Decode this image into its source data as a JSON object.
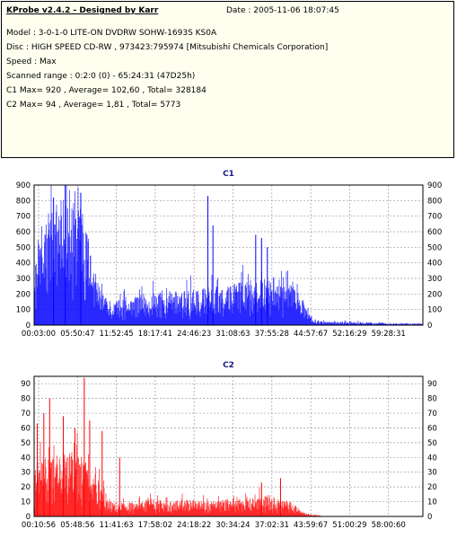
{
  "info": {
    "app_title": "KProbe v2.4.2 - Designed by Karr",
    "date": "Date : 2005-11-06 18:07:45",
    "lines": [
      "Model : 3-0-1-0 LITE-ON DVDRW SOHW-1693S KS0A",
      "Disc : HIGH SPEED CD-RW , 973423:795974 [Mitsubishi Chemicals Corporation]",
      "Speed : Max",
      "Scanned range : 0:2:0 (0) - 65:24:31 (47D25h)",
      "C1 Max= 920 , Average= 102,60 , Total= 328184",
      "C2 Max= 94 , Average= 1,81 , Total= 5773"
    ]
  },
  "chart_data": [
    {
      "type": "bar",
      "title": "C1",
      "color": "#0000ff",
      "ylim": [
        0,
        900
      ],
      "yticks": [
        0,
        100,
        200,
        300,
        400,
        500,
        600,
        700,
        800,
        900
      ],
      "xticks": [
        "00:03:00",
        "05:50:47",
        "11:52:45",
        "18:17:41",
        "24:46:23",
        "31:08:63",
        "37:55:28",
        "44:57:67",
        "52:16:29",
        "59:28:31"
      ],
      "grid": true,
      "envelope": [
        [
          0,
          420
        ],
        [
          2,
          680
        ],
        [
          4,
          740
        ],
        [
          6,
          820
        ],
        [
          8,
          860
        ],
        [
          10,
          900
        ],
        [
          12,
          880
        ],
        [
          14,
          600
        ],
        [
          15,
          500
        ],
        [
          16,
          300
        ],
        [
          18,
          180
        ],
        [
          20,
          160
        ],
        [
          24,
          170
        ],
        [
          28,
          200
        ],
        [
          32,
          210
        ],
        [
          36,
          230
        ],
        [
          40,
          230
        ],
        [
          44,
          240
        ],
        [
          48,
          260
        ],
        [
          52,
          270
        ],
        [
          56,
          300
        ],
        [
          60,
          300
        ],
        [
          64,
          310
        ],
        [
          66,
          300
        ],
        [
          68,
          250
        ],
        [
          70,
          100
        ],
        [
          72,
          40
        ],
        [
          75,
          20
        ],
        [
          80,
          25
        ],
        [
          85,
          20
        ],
        [
          90,
          15
        ],
        [
          95,
          12
        ],
        [
          100,
          10
        ]
      ],
      "spikes": [
        {
          "x": 5,
          "value": 820
        },
        {
          "x": 8,
          "value": 920
        },
        {
          "x": 12,
          "value": 850
        },
        {
          "x": 44.7,
          "value": 830
        },
        {
          "x": 46,
          "value": 640
        },
        {
          "x": 57,
          "value": 580
        },
        {
          "x": 58.5,
          "value": 560
        },
        {
          "x": 60,
          "value": 500
        }
      ]
    },
    {
      "type": "bar",
      "title": "C2",
      "color": "#ff0000",
      "ylim": [
        0,
        95
      ],
      "yticks": [
        0,
        10,
        20,
        30,
        40,
        50,
        60,
        70,
        80,
        90
      ],
      "xticks": [
        "00:10:56",
        "05:48:56",
        "11:41:63",
        "17:58:02",
        "24:18:22",
        "30:34:24",
        "37:02:31",
        "43:59:67",
        "51:00:29",
        "58:00:60"
      ],
      "grid": true,
      "envelope": [
        [
          0,
          35
        ],
        [
          3,
          40
        ],
        [
          6,
          42
        ],
        [
          10,
          45
        ],
        [
          13,
          40
        ],
        [
          16,
          30
        ],
        [
          18,
          20
        ],
        [
          20,
          10
        ],
        [
          25,
          10
        ],
        [
          30,
          12
        ],
        [
          35,
          10
        ],
        [
          40,
          12
        ],
        [
          45,
          10
        ],
        [
          50,
          12
        ],
        [
          55,
          14
        ],
        [
          60,
          15
        ],
        [
          63,
          12
        ],
        [
          66,
          10
        ],
        [
          70,
          2
        ],
        [
          75,
          0
        ],
        [
          100,
          0
        ]
      ],
      "spikes": [
        {
          "x": 0.8,
          "value": 63
        },
        {
          "x": 2.5,
          "value": 70
        },
        {
          "x": 4,
          "value": 80
        },
        {
          "x": 7.5,
          "value": 68
        },
        {
          "x": 10.5,
          "value": 60
        },
        {
          "x": 12.9,
          "value": 94
        },
        {
          "x": 14.3,
          "value": 65
        },
        {
          "x": 17.5,
          "value": 58
        },
        {
          "x": 22,
          "value": 40
        },
        {
          "x": 58.5,
          "value": 23
        },
        {
          "x": 63.4,
          "value": 26
        }
      ]
    }
  ]
}
